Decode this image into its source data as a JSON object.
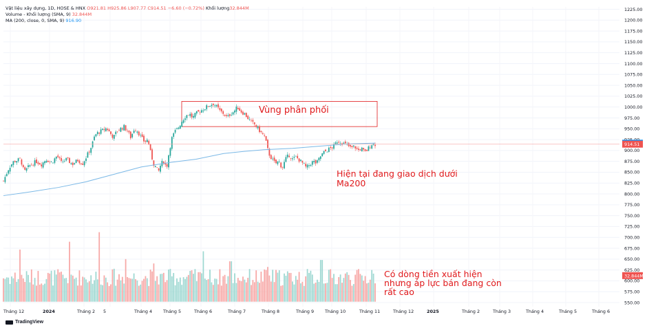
{
  "legend": {
    "title": "Vật liệu xây dựng, 1D, HOSE & HNX",
    "open": "O921.81",
    "high": "H925.86",
    "low": "L907.77",
    "close": "C914.51",
    "change": "−6.60 (−0.72%)",
    "vol_label": "Khối lượng",
    "vol_value": "32.844M",
    "volume_title": "Volume - Khối lượng (SMA, 9)",
    "volume_value": "32.844M",
    "ma_title": "MA (200, close, 0, SMA, 9)",
    "ma_value": "916.90"
  },
  "annotations": {
    "distribution": "Vùng phân phối",
    "below_ma_line1": "Hiện tại đang giao dịch dưới",
    "below_ma_line2": "Ma200",
    "cashflow_line1": "Có dòng tiền xuất hiện",
    "cashflow_line2": "nhưng áp lực bán đang còn",
    "cashflow_line3": "rất cao"
  },
  "branding": {
    "logo": "TradingView"
  },
  "colors": {
    "up": "#26a69a",
    "down": "#ef5350",
    "ma": "#7ab8e6",
    "annotation": "#e0191b",
    "ma_label_bg": "#2196f3",
    "price_label_bg": "#ef5350"
  },
  "chart_data": {
    "type": "candlestick",
    "price_axis": {
      "ticks": [
        "1225.00",
        "1200.00",
        "1175.00",
        "1150.00",
        "1125.00",
        "1100.00",
        "1075.00",
        "1050.00",
        "1025.00",
        "1000.00",
        "975.00",
        "950.00",
        "925.00",
        "900.00",
        "875.00",
        "850.00",
        "825.00",
        "800.00",
        "775.00",
        "750.00",
        "725.00",
        "700.00",
        "675.00",
        "650.00",
        "625.00",
        "600.00",
        "575.00",
        "550.00"
      ],
      "ylim": [
        540,
        1235
      ]
    },
    "time_axis": {
      "ticks": [
        "Tháng 12",
        "2024",
        "Tháng 2",
        "5",
        "Tháng 4",
        "Tháng 5",
        "Tháng 6",
        "Tháng 7",
        "Tháng 8",
        "Tháng 9",
        "Tháng 10",
        "Tháng 11",
        "Tháng 12",
        "2025",
        "Tháng 2",
        "Tháng 3",
        "Tháng 4",
        "Tháng 5",
        "Tháng 6"
      ]
    },
    "price_labels": {
      "ma200": "916.90",
      "close": "914.51",
      "volume": "32.844M"
    },
    "price_path": [
      [
        0,
        830
      ],
      [
        8,
        860
      ],
      [
        15,
        875
      ],
      [
        25,
        880
      ],
      [
        30,
        850
      ],
      [
        38,
        865
      ],
      [
        48,
        875
      ],
      [
        55,
        868
      ],
      [
        62,
        880
      ],
      [
        70,
        872
      ],
      [
        78,
        888
      ],
      [
        84,
        872
      ],
      [
        92,
        880
      ],
      [
        100,
        868
      ],
      [
        108,
        878
      ],
      [
        115,
        870
      ],
      [
        122,
        890
      ],
      [
        128,
        910
      ],
      [
        133,
        935
      ],
      [
        138,
        942
      ],
      [
        143,
        945
      ],
      [
        150,
        952
      ],
      [
        155,
        940
      ],
      [
        160,
        930
      ],
      [
        165,
        945
      ],
      [
        170,
        950
      ],
      [
        175,
        955
      ],
      [
        180,
        945
      ],
      [
        185,
        930
      ],
      [
        190,
        950
      ],
      [
        195,
        945
      ],
      [
        200,
        930
      ],
      [
        205,
        920
      ],
      [
        210,
        925
      ],
      [
        213,
        900
      ],
      [
        218,
        870
      ],
      [
        222,
        860
      ],
      [
        225,
        850
      ],
      [
        229,
        870
      ],
      [
        233,
        875
      ],
      [
        237,
        860
      ],
      [
        241,
        900
      ],
      [
        245,
        930
      ],
      [
        250,
        945
      ],
      [
        255,
        955
      ],
      [
        260,
        970
      ],
      [
        265,
        980
      ],
      [
        270,
        985
      ],
      [
        275,
        975
      ],
      [
        280,
        985
      ],
      [
        285,
        990
      ],
      [
        290,
        995
      ],
      [
        295,
        1000
      ],
      [
        300,
        1005
      ],
      [
        305,
        1008
      ],
      [
        310,
        1000
      ],
      [
        315,
        990
      ],
      [
        320,
        985
      ],
      [
        325,
        975
      ],
      [
        330,
        985
      ],
      [
        335,
        990
      ],
      [
        340,
        1000
      ],
      [
        345,
        990
      ],
      [
        350,
        985
      ],
      [
        355,
        975
      ],
      [
        360,
        965
      ],
      [
        365,
        960
      ],
      [
        370,
        950
      ],
      [
        375,
        940
      ],
      [
        380,
        930
      ],
      [
        385,
        895
      ],
      [
        390,
        880
      ],
      [
        395,
        870
      ],
      [
        400,
        875
      ],
      [
        405,
        860
      ],
      [
        410,
        880
      ],
      [
        415,
        890
      ],
      [
        420,
        880
      ],
      [
        425,
        885
      ],
      [
        430,
        878
      ],
      [
        435,
        870
      ],
      [
        440,
        860
      ],
      [
        445,
        868
      ],
      [
        450,
        875
      ],
      [
        455,
        870
      ],
      [
        460,
        885
      ],
      [
        465,
        895
      ],
      [
        470,
        900
      ],
      [
        475,
        905
      ],
      [
        480,
        910
      ],
      [
        485,
        922
      ],
      [
        490,
        920
      ],
      [
        495,
        915
      ],
      [
        500,
        912
      ],
      [
        505,
        905
      ],
      [
        510,
        910
      ],
      [
        515,
        900
      ],
      [
        520,
        905
      ],
      [
        525,
        895
      ],
      [
        530,
        905
      ],
      [
        535,
        915
      ],
      [
        540,
        914.51
      ]
    ],
    "ma200_path": [
      [
        0,
        796
      ],
      [
        40,
        805
      ],
      [
        80,
        815
      ],
      [
        120,
        828
      ],
      [
        160,
        845
      ],
      [
        200,
        862
      ],
      [
        240,
        872
      ],
      [
        280,
        880
      ],
      [
        320,
        893
      ],
      [
        350,
        898
      ],
      [
        380,
        902
      ],
      [
        420,
        905
      ],
      [
        460,
        910
      ],
      [
        500,
        915
      ],
      [
        540,
        916.9
      ]
    ],
    "volume_mean": 600,
    "volume_spikes": [
      [
        23,
        672
      ],
      [
        95,
        690
      ],
      [
        140,
        712
      ],
      [
        178,
        650
      ],
      [
        218,
        640
      ],
      [
        290,
        668
      ],
      [
        330,
        645
      ],
      [
        385,
        632
      ],
      [
        462,
        648
      ],
      [
        535,
        625
      ]
    ],
    "distribution_zone": [
      955,
      1013
    ],
    "last_close": 914.51,
    "last_ma200": 916.9,
    "last_volume_label": "32.844M"
  }
}
